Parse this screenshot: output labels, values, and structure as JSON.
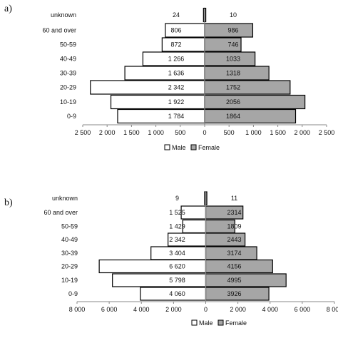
{
  "chart_data": [
    {
      "type": "bar",
      "orientation": "horizontal-population-pyramid",
      "panel_label": "a)",
      "categories": [
        "unknown",
        "60 and over",
        "50-59",
        "40-49",
        "30-39",
        "20-29",
        "10-19",
        "0-9"
      ],
      "series": [
        {
          "name": "Male",
          "values": [
            24,
            806,
            872,
            1266,
            1636,
            2342,
            1922,
            1784
          ],
          "labels": [
            "24",
            "806",
            "872",
            "1 266",
            "1 636",
            "2 342",
            "1 922",
            "1 784"
          ],
          "color": "#ffffff",
          "side": "left"
        },
        {
          "name": "Female",
          "values": [
            10,
            986,
            746,
            1033,
            1318,
            1752,
            2056,
            1864
          ],
          "labels": [
            "10",
            "986",
            "746",
            "1033",
            "1318",
            "1752",
            "2056",
            "1864"
          ],
          "color": "#a6a6a6",
          "side": "right"
        }
      ],
      "xlim": [
        -2500,
        2500
      ],
      "tick_labels": [
        "2 500",
        "2 000",
        "1 500",
        "1 000",
        "500",
        "0",
        "500",
        "1 000",
        "1 500",
        "2 000",
        "2 500"
      ],
      "grid": false,
      "legend": "bottom"
    },
    {
      "type": "bar",
      "orientation": "horizontal-population-pyramid",
      "panel_label": "b)",
      "categories": [
        "unknown",
        "60 and over",
        "50-59",
        "40-49",
        "30-39",
        "20-29",
        "10-19",
        "0-9"
      ],
      "series": [
        {
          "name": "Male",
          "values": [
            9,
            1525,
            1429,
            2342,
            3404,
            6620,
            5798,
            4060
          ],
          "labels": [
            "9",
            "1 525",
            "1 429",
            "2 342",
            "3 404",
            "6 620",
            "5 798",
            "4 060"
          ],
          "color": "#ffffff",
          "side": "left"
        },
        {
          "name": "Female",
          "values": [
            11,
            2314,
            1809,
            2443,
            3174,
            4156,
            4995,
            3926
          ],
          "labels": [
            "11",
            "2314",
            "1809",
            "2443",
            "3174",
            "4156",
            "4995",
            "3926"
          ],
          "color": "#a6a6a6",
          "side": "right"
        }
      ],
      "xlim": [
        -8000,
        8000
      ],
      "tick_labels": [
        "8 000",
        "6 000",
        "4 000",
        "2 000",
        "0",
        "2 000",
        "4 000",
        "6 000",
        "8 000"
      ],
      "grid": false,
      "legend": "bottom"
    }
  ]
}
